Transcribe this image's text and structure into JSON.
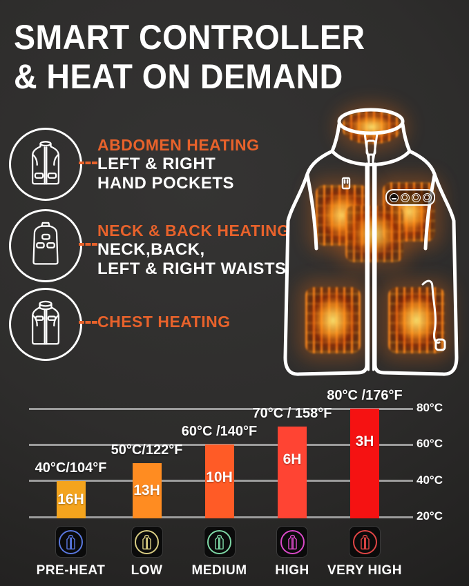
{
  "title": {
    "line1": "SMART CONTROLLER",
    "line2": "& HEAT ON DEMAND"
  },
  "features": [
    {
      "heading": "ABDOMEN HEATING",
      "line1": "LEFT & RIGHT",
      "line2": "HAND POCKETS",
      "icon": "vest-front-hand-pockets-icon"
    },
    {
      "heading": "NECK & BACK HEATING",
      "line1": "NECK,BACK,",
      "line2": "LEFT & RIGHT WAISTS",
      "icon": "vest-back-icon"
    },
    {
      "heading": "CHEST HEATING",
      "line1": "",
      "line2": "",
      "icon": "vest-front-chest-icon"
    }
  ],
  "vest": {
    "heating_zones": [
      "collar",
      "left-chest",
      "right-chest",
      "center-back",
      "left-pocket",
      "right-pocket"
    ],
    "controller_button_count": 4
  },
  "colors": {
    "accent_orange": "#E8622B",
    "background": "#2D2C2B",
    "text_white": "#FFFFFF",
    "gridline": "#9C9C9C"
  },
  "chart_data": {
    "type": "bar",
    "categories": [
      "PRE-HEAT",
      "LOW",
      "MEDIUM",
      "HIGH",
      "VERY HIGH"
    ],
    "series": [
      {
        "name": "max_temperature_c",
        "values": [
          40,
          50,
          60,
          70,
          80
        ]
      },
      {
        "name": "battery_hours",
        "values": [
          16,
          13,
          10,
          6,
          3
        ]
      }
    ],
    "bar_value_labels": [
      "40°C/104°F",
      "50°C/122°F",
      "60°C /140°F",
      "70°C / 158°F",
      "80°C /176°F"
    ],
    "bar_duration_labels": [
      "16H",
      "13H",
      "10H",
      "6H",
      "3H"
    ],
    "bar_colors": [
      "#F4A41D",
      "#FF8C21",
      "#FF5B26",
      "#FF4433",
      "#F51212"
    ],
    "y_tick_labels": [
      "80°C",
      "60°C",
      "40°C",
      "20°C"
    ],
    "y_tick_values": [
      80,
      60,
      40,
      20
    ],
    "ylim": [
      20,
      84
    ],
    "baseline_value": 20,
    "grid": "horizontal",
    "legend_ring_colors": [
      "#5A78E0",
      "#D8CC82",
      "#7ED8A6",
      "#DA49C8",
      "#E04545"
    ]
  }
}
